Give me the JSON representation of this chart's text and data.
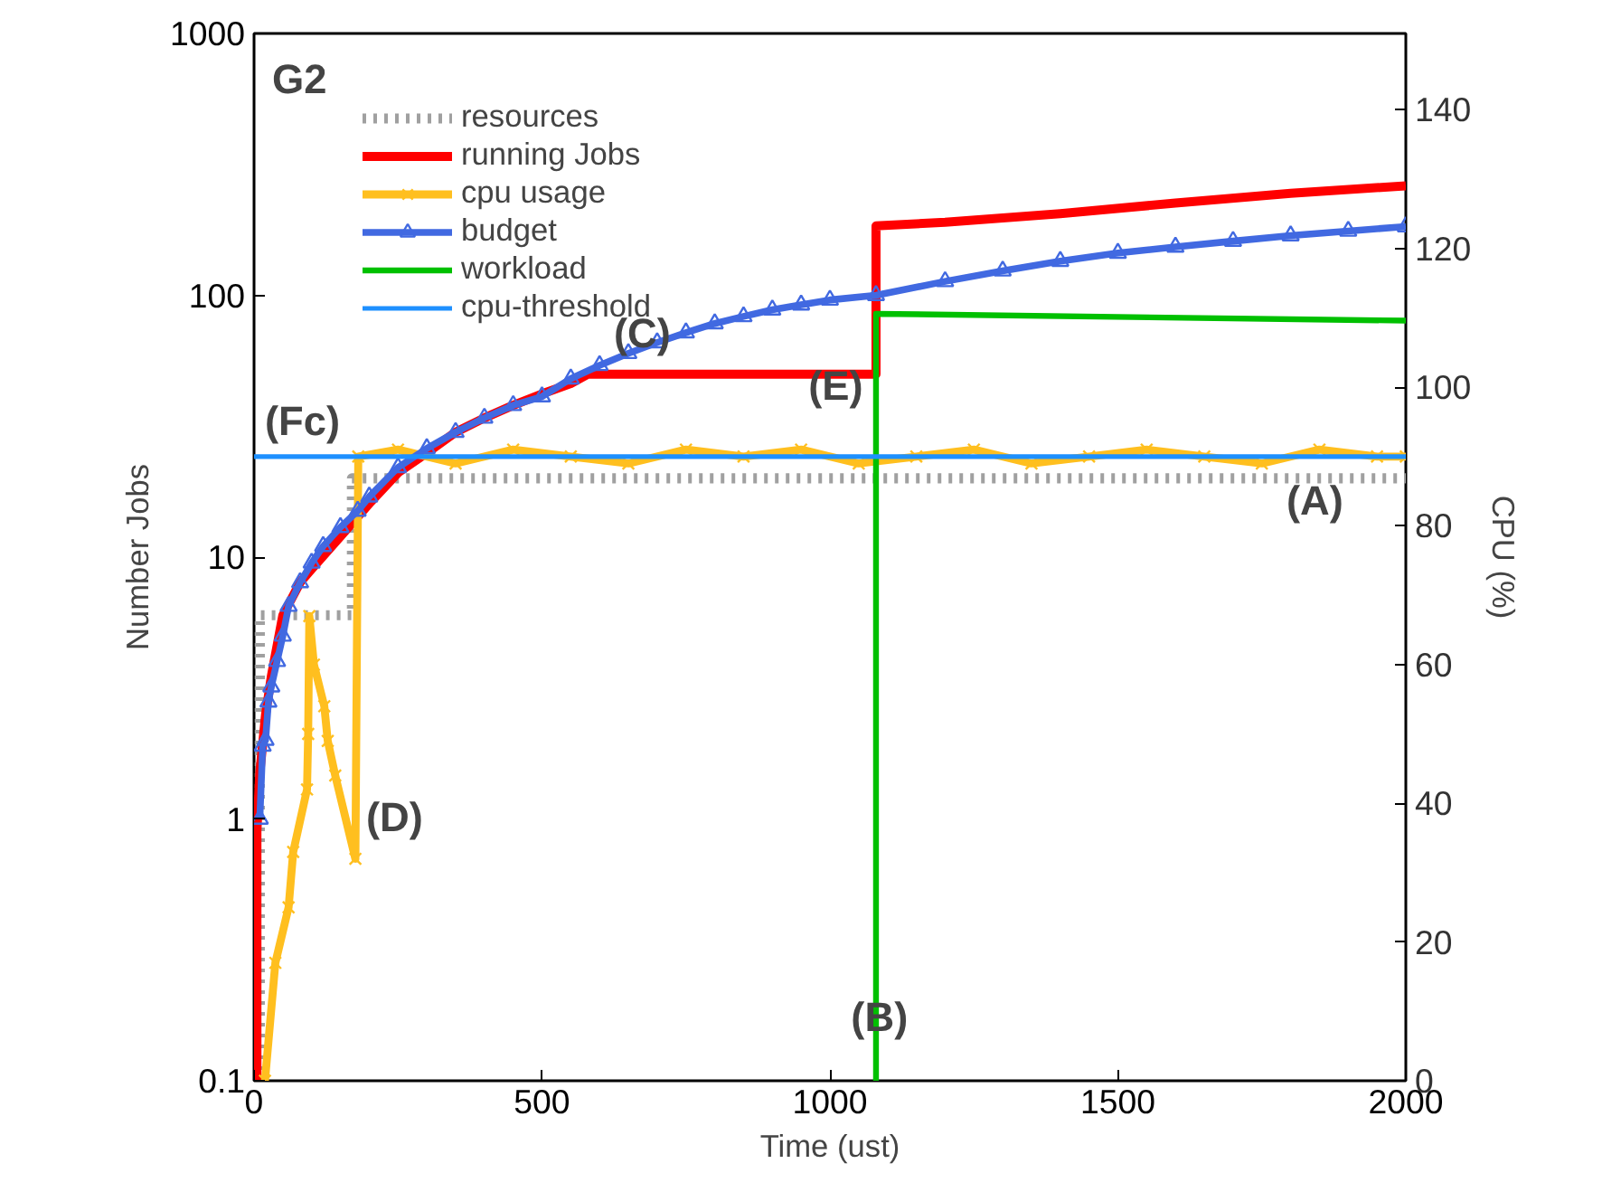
{
  "chart_data": {
    "type": "line",
    "title": "G2",
    "xlabel": "Time (ust)",
    "ylabel": "Number Jobs",
    "y2label": "CPU (%)",
    "xlim": [
      0,
      2000
    ],
    "xticks": [
      0,
      500,
      1000,
      1500,
      2000
    ],
    "ylim": [
      0.1,
      1000
    ],
    "yticks": [
      0.1,
      1,
      10,
      100,
      1000
    ],
    "log": "y",
    "y2lim": [
      0,
      151
    ],
    "y2ticks": [
      0,
      20,
      40,
      60,
      80,
      100,
      120,
      140
    ],
    "grid": false,
    "legend": "top left",
    "series": [
      {
        "name": "resources",
        "color": "#a0a0a0",
        "line_style": "dotted",
        "x": [
          10,
          10,
          170,
          170,
          2000
        ],
        "values": [
          0.1,
          6,
          6,
          20,
          20
        ]
      },
      {
        "name": "running Jobs",
        "color": "#ff0000",
        "x": [
          5,
          5,
          10,
          20,
          30,
          50,
          80,
          100,
          150,
          200,
          250,
          300,
          350,
          400,
          450,
          500,
          550,
          580,
          1080,
          1080,
          1200,
          1400,
          1600,
          1800,
          2000
        ],
        "values": [
          0.1,
          0.9,
          1.5,
          2.5,
          3.5,
          6,
          8,
          9,
          12,
          16,
          21,
          25,
          30,
          34,
          38,
          42,
          46,
          50,
          50,
          184,
          190,
          205,
          225,
          245,
          262
        ]
      },
      {
        "name": "cpu usage",
        "color": "#ffbf1f",
        "marker": "cross",
        "axis": "y2",
        "x": [
          19,
          37,
          60,
          68,
          92,
          94,
          96,
          104,
          122,
          128,
          141,
          176,
          181,
          250,
          350,
          450,
          550,
          650,
          750,
          850,
          950,
          1050,
          1150,
          1250,
          1350,
          1450,
          1550,
          1650,
          1750,
          1850,
          1950,
          2000
        ],
        "values": [
          0,
          17,
          25,
          33,
          42,
          50,
          67,
          60,
          54,
          49,
          44,
          32,
          90,
          91,
          89,
          91,
          90,
          89,
          91,
          90,
          91,
          89,
          90,
          91,
          89,
          90,
          91,
          90,
          89,
          91,
          90,
          90
        ]
      },
      {
        "name": "budget",
        "color": "#4169e1",
        "marker": "triangle",
        "x": [
          10,
          15,
          20,
          25,
          30,
          40,
          50,
          60,
          80,
          100,
          120,
          150,
          180,
          200,
          250,
          300,
          350,
          400,
          450,
          500,
          550,
          600,
          650,
          700,
          750,
          800,
          850,
          900,
          950,
          1000,
          1080,
          1200,
          1300,
          1400,
          1500,
          1600,
          1700,
          1800,
          1900,
          2000
        ],
        "values": [
          1,
          1.9,
          2,
          2.8,
          3.2,
          4,
          5,
          6.5,
          8,
          9.5,
          11,
          13,
          15,
          17,
          22,
          26,
          30,
          34,
          38,
          41,
          48,
          54,
          60,
          66,
          72,
          78,
          83,
          88,
          92,
          96,
          100,
          113,
          124,
          135,
          145,
          153,
          161,
          169,
          176,
          183
        ]
      },
      {
        "name": "workload",
        "color": "#00c000",
        "x": [
          1080,
          1080,
          2000
        ],
        "values": [
          0.1,
          85,
          80
        ]
      },
      {
        "name": "cpu-threshold",
        "color": "#1e90ff",
        "axis": "y2",
        "x": [
          0,
          2000
        ],
        "values": [
          90,
          90
        ]
      }
    ],
    "annotations": [
      "(Fc)",
      "(C)",
      "(E)",
      "(A)",
      "(D)",
      "(B)"
    ]
  }
}
